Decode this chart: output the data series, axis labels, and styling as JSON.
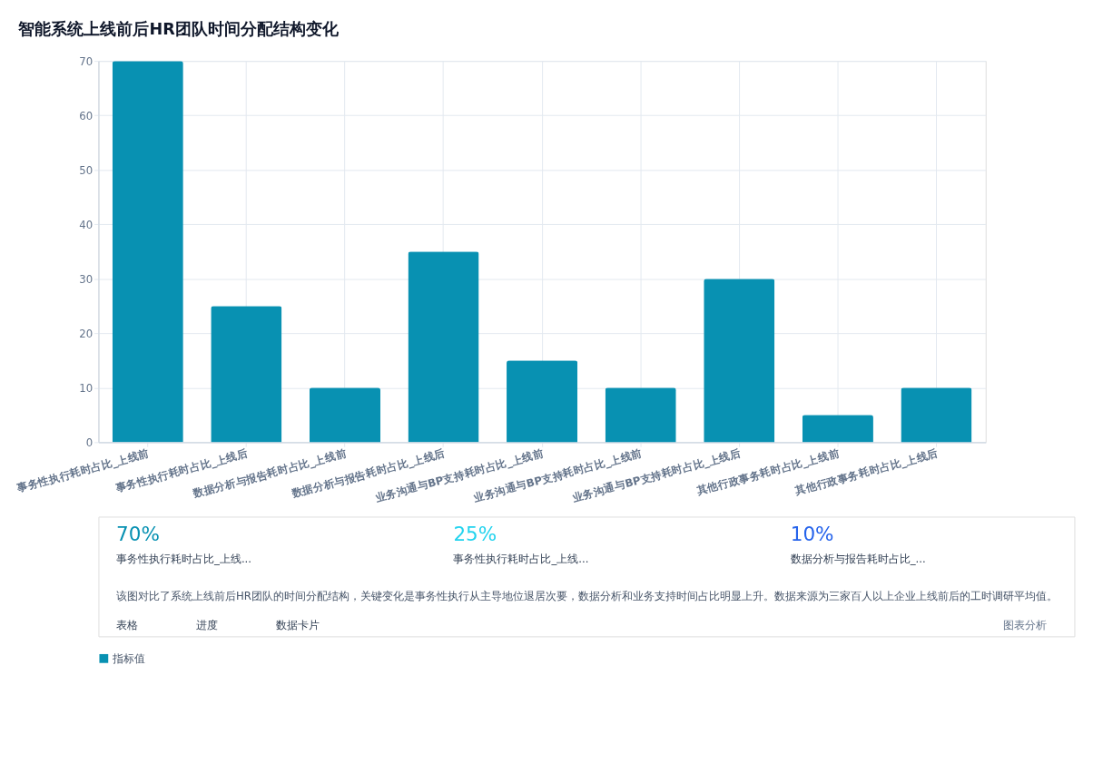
{
  "chart_data": {
    "type": "bar",
    "title": "智能系统上线前后HR团队时间分配结构变化",
    "categories": [
      "事务性执行耗时占比_上线前",
      "事务性执行耗时占比_上线后",
      "数据分析与报告耗时占比_上线前",
      "数据分析与报告耗时占比_上线后",
      "业务沟通与BP支持耗时占比_上线前",
      "业务沟通与BP支持耗时占比_上线前",
      "业务沟通与BP支持耗时占比_上线后",
      "其他行政事务耗时占比_上线前",
      "其他行政事务耗时占比_上线后"
    ],
    "series": [
      {
        "name": "指标值",
        "color": "#0891b2",
        "values": [
          70,
          25,
          10,
          35,
          15,
          10,
          30,
          5,
          10
        ]
      }
    ],
    "ylim": [
      0,
      70
    ],
    "yticks": [
      0,
      10,
      20,
      30,
      40,
      50,
      60,
      70
    ],
    "grid": true,
    "legend": "bottom",
    "annotations": [
      "70%",
      "事务性执行耗时占比_上线...",
      "25%",
      "事务性执行耗时占比_上线...",
      "10%",
      "数据分析与报告耗时占比_...",
      "该图对比了系统上线前后HR团队的时间分配结构，关键变化是事务性执行从主导地位退居次要，数据分析和业务支持时间占比明显上升。数据来源为三家百人以上企业上线前后的工时调研平均值。",
      "表格",
      "进度",
      "数据卡片",
      "图表分析"
    ]
  }
}
